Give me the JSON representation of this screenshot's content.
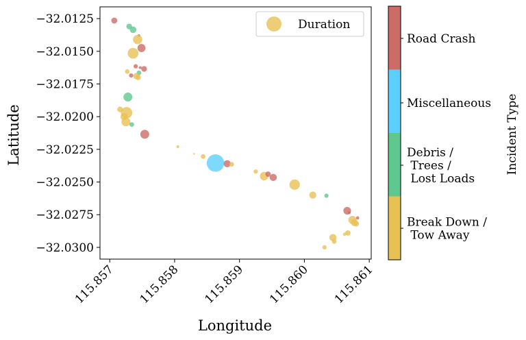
{
  "chart_data": {
    "type": "scatter",
    "title": "",
    "xlabel": "Longitude",
    "ylabel": "Latitude",
    "xlim": [
      115.85685,
      115.86103
    ],
    "ylim": [
      -32.0309,
      -32.0116
    ],
    "xticks": [
      "115.857",
      "115.858",
      "115.859",
      "115.860",
      "115.861"
    ],
    "xtick_values": [
      115.857,
      115.858,
      115.859,
      115.86,
      115.861
    ],
    "yticks": [
      "−32.0125",
      "−32.0150",
      "−32.0175",
      "−32.0200",
      "−32.0225",
      "−32.0250",
      "−32.0275",
      "−32.0300"
    ],
    "ytick_values": [
      -32.0125,
      -32.015,
      -32.0175,
      -32.02,
      -32.0225,
      -32.025,
      -32.0275,
      -32.03
    ],
    "grid": false,
    "legend": {
      "label": "Duration",
      "position": "top-right"
    },
    "colorbar": {
      "label": "Incident Type",
      "categories": [
        {
          "name": "Break Down /\n Tow Away",
          "color": "#e8c155"
        },
        {
          "name": "Debris /\n Trees /\n Lost Loads",
          "color": "#5fc88e"
        },
        {
          "name": "Miscellaneous",
          "color": "#5ccffe"
        },
        {
          "name": "Road Crash",
          "color": "#cd6b66"
        }
      ]
    },
    "points": [
      {
        "lon": 115.85707,
        "lat": -32.01265,
        "type": "Road Crash",
        "duration": 50
      },
      {
        "lon": 115.8573,
        "lat": -32.0131,
        "type": "Debris / Trees / Lost Loads",
        "duration": 45
      },
      {
        "lon": 115.85736,
        "lat": -32.01335,
        "type": "Debris / Trees / Lost Loads",
        "duration": 60
      },
      {
        "lon": 115.85745,
        "lat": -32.0138,
        "type": "Road Crash",
        "duration": 10
      },
      {
        "lon": 115.85743,
        "lat": -32.0141,
        "type": "Break Down / Tow Away",
        "duration": 120
      },
      {
        "lon": 115.85749,
        "lat": -32.01475,
        "type": "Road Crash",
        "duration": 90
      },
      {
        "lon": 115.85736,
        "lat": -32.01515,
        "type": "Break Down / Tow Away",
        "duration": 160
      },
      {
        "lon": 115.8574,
        "lat": -32.01615,
        "type": "Road Crash",
        "duration": 25
      },
      {
        "lon": 115.85747,
        "lat": -32.01625,
        "type": "Road Crash",
        "duration": 12
      },
      {
        "lon": 115.85753,
        "lat": -32.01635,
        "type": "Road Crash",
        "duration": 45
      },
      {
        "lon": 115.85727,
        "lat": -32.01655,
        "type": "Break Down / Tow Away",
        "duration": 30
      },
      {
        "lon": 115.85745,
        "lat": -32.01665,
        "type": "Debris / Trees / Lost Loads",
        "duration": 30
      },
      {
        "lon": 115.85733,
        "lat": -32.01685,
        "type": "Road Crash",
        "duration": 25
      },
      {
        "lon": 115.85741,
        "lat": -32.0169,
        "type": "Break Down / Tow Away",
        "duration": 55
      },
      {
        "lon": 115.85744,
        "lat": -32.017,
        "type": "Break Down / Tow Away",
        "duration": 40
      },
      {
        "lon": 115.85728,
        "lat": -32.0185,
        "type": "Debris / Trees / Lost Loads",
        "duration": 110
      },
      {
        "lon": 115.85716,
        "lat": -32.01945,
        "type": "Break Down / Tow Away",
        "duration": 45
      },
      {
        "lon": 115.85726,
        "lat": -32.0197,
        "type": "Break Down / Tow Away",
        "duration": 180
      },
      {
        "lon": 115.85722,
        "lat": -32.02,
        "type": "Break Down / Tow Away",
        "duration": 70
      },
      {
        "lon": 115.85725,
        "lat": -32.0204,
        "type": "Break Down / Tow Away",
        "duration": 110
      },
      {
        "lon": 115.85734,
        "lat": -32.0206,
        "type": "Debris / Trees / Lost Loads",
        "duration": 30
      },
      {
        "lon": 115.85754,
        "lat": -32.02135,
        "type": "Road Crash",
        "duration": 110
      },
      {
        "lon": 115.85805,
        "lat": -32.0223,
        "type": "Break Down / Tow Away",
        "duration": 12
      },
      {
        "lon": 115.8583,
        "lat": -32.02285,
        "type": "Break Down / Tow Away",
        "duration": 4
      },
      {
        "lon": 115.85844,
        "lat": -32.02305,
        "type": "Break Down / Tow Away",
        "duration": 30
      },
      {
        "lon": 115.85863,
        "lat": -32.02355,
        "type": "Miscellaneous",
        "duration": 420
      },
      {
        "lon": 115.85881,
        "lat": -32.0236,
        "type": "Road Crash",
        "duration": 70
      },
      {
        "lon": 115.85888,
        "lat": -32.02365,
        "type": "Break Down / Tow Away",
        "duration": 30
      },
      {
        "lon": 115.85925,
        "lat": -32.0242,
        "type": "Break Down / Tow Away",
        "duration": 25
      },
      {
        "lon": 115.85938,
        "lat": -32.02455,
        "type": "Break Down / Tow Away",
        "duration": 100
      },
      {
        "lon": 115.85944,
        "lat": -32.0244,
        "type": "Road Crash",
        "duration": 40
      },
      {
        "lon": 115.85952,
        "lat": -32.02465,
        "type": "Road Crash",
        "duration": 70
      },
      {
        "lon": 115.85985,
        "lat": -32.0252,
        "type": "Break Down / Tow Away",
        "duration": 150
      },
      {
        "lon": 115.86013,
        "lat": -32.026,
        "type": "Break Down / Tow Away",
        "duration": 70
      },
      {
        "lon": 115.86034,
        "lat": -32.02605,
        "type": "Debris / Trees / Lost Loads",
        "duration": 25
      },
      {
        "lon": 115.86066,
        "lat": -32.0272,
        "type": "Road Crash",
        "duration": 80
      },
      {
        "lon": 115.86069,
        "lat": -32.02735,
        "type": "Road Crash",
        "duration": 12
      },
      {
        "lon": 115.86082,
        "lat": -32.02775,
        "type": "Road Crash",
        "duration": 15
      },
      {
        "lon": 115.86074,
        "lat": -32.0279,
        "type": "Break Down / Tow Away",
        "duration": 90
      },
      {
        "lon": 115.86077,
        "lat": -32.0281,
        "type": "Break Down / Tow Away",
        "duration": 70
      },
      {
        "lon": 115.8608,
        "lat": -32.0282,
        "type": "Break Down / Tow Away",
        "duration": 40
      },
      {
        "lon": 115.86067,
        "lat": -32.0289,
        "type": "Break Down / Tow Away",
        "duration": 40
      },
      {
        "lon": 115.86062,
        "lat": -32.029,
        "type": "Break Down / Tow Away",
        "duration": 15
      },
      {
        "lon": 115.86044,
        "lat": -32.02925,
        "type": "Break Down / Tow Away",
        "duration": 70
      },
      {
        "lon": 115.86046,
        "lat": -32.02955,
        "type": "Break Down / Tow Away",
        "duration": 30
      },
      {
        "lon": 115.86031,
        "lat": -32.03,
        "type": "Break Down / Tow Away",
        "duration": 25
      }
    ]
  }
}
